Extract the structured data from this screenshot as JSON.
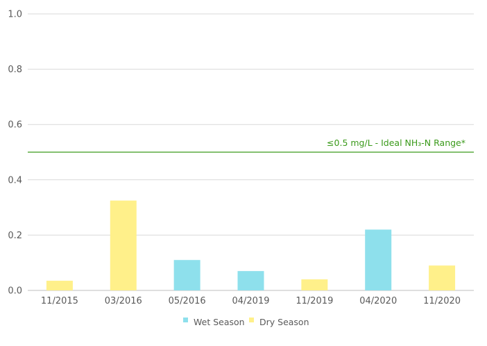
{
  "chart_data": {
    "type": "bar",
    "categories": [
      "11/2015",
      "03/2016",
      "05/2016",
      "04/2019",
      "11/2019",
      "04/2020",
      "11/2020"
    ],
    "values": [
      0.035,
      0.325,
      0.11,
      0.07,
      0.04,
      0.22,
      0.09
    ],
    "season": [
      "Dry Season",
      "Dry Season",
      "Wet Season",
      "Wet Season",
      "Dry Season",
      "Wet Season",
      "Dry Season"
    ],
    "series": [
      {
        "name": "Wet Season",
        "color": "#8ee0ec"
      },
      {
        "name": "Dry Season",
        "color": "#fff08a"
      }
    ],
    "y_ticks": [
      "0.0",
      "0.2",
      "0.4",
      "0.6",
      "0.8",
      "1.0"
    ],
    "ylim": [
      0,
      1.0
    ],
    "grid": true,
    "legend_position": "bottom",
    "reference_line": {
      "value": 0.5,
      "label": "≤0.5 mg/L - Ideal NH₃-N Range*",
      "color": "#3a9a1a"
    },
    "title": "",
    "xlabel": "",
    "ylabel": ""
  }
}
